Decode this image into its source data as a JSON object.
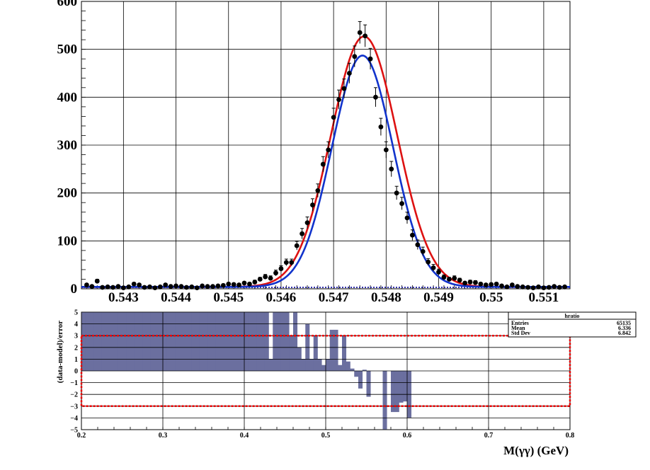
{
  "chart_data": [
    {
      "type": "scatter",
      "title": "",
      "xlabel": "",
      "ylabel": "",
      "xlim": [
        0.5422,
        0.5515
      ],
      "ylim": [
        0,
        600
      ],
      "grid": true,
      "x_ticks": [
        "0.543",
        "0.544",
        "0.545",
        "0.546",
        "0.547",
        "0.548",
        "0.549",
        "0.55",
        "0.551"
      ],
      "y_ticks": [
        "0",
        "100",
        "200",
        "300",
        "400",
        "500",
        "600"
      ],
      "peak_position": 0.5476,
      "series": [
        {
          "color": "#000000",
          "style": "points-with-errors",
          "x": [
            0.5423,
            0.5424,
            0.5425,
            0.5426,
            0.5427,
            0.5428,
            0.5429,
            0.543,
            0.5431,
            0.5432,
            0.5433,
            0.5434,
            0.5435,
            0.5436,
            0.5437,
            0.5438,
            0.5439,
            0.544,
            0.5441,
            0.5442,
            0.5443,
            0.5444,
            0.5445,
            0.5446,
            0.5447,
            0.5448,
            0.5449,
            0.545,
            0.5451,
            0.5452,
            0.5453,
            0.5454,
            0.5455,
            0.5456,
            0.5457,
            0.5458,
            0.5459,
            0.546,
            0.5461,
            0.5462,
            0.5463,
            0.5464,
            0.5465,
            0.5466,
            0.5467,
            0.5468,
            0.5469,
            0.547,
            0.5471,
            0.5472,
            0.5473,
            0.5474,
            0.5475,
            0.5476,
            0.5477,
            0.5478,
            0.5479,
            0.548,
            0.5481,
            0.5482,
            0.5483,
            0.5484,
            0.5485,
            0.5486,
            0.5487,
            0.5488,
            0.5489,
            0.549,
            0.5491,
            0.5492,
            0.5493,
            0.5494,
            0.5495,
            0.5496,
            0.5497,
            0.5498,
            0.5499,
            0.55,
            0.5501,
            0.5502,
            0.5503,
            0.5504,
            0.5505,
            0.5506,
            0.5507,
            0.5508,
            0.5509,
            0.551,
            0.5511,
            0.5512,
            0.5513,
            0.5514
          ],
          "y": [
            8,
            5,
            16,
            3,
            4,
            3,
            5,
            2,
            4,
            10,
            8,
            3,
            4,
            2,
            4,
            8,
            5,
            6,
            5,
            3,
            4,
            2,
            6,
            5,
            5,
            6,
            7,
            10,
            9,
            8,
            12,
            10,
            14,
            20,
            25,
            22,
            33,
            42,
            55,
            55,
            90,
            115,
            138,
            175,
            205,
            260,
            290,
            358,
            395,
            418,
            450,
            485,
            535,
            528,
            480,
            400,
            338,
            290,
            250,
            200,
            178,
            148,
            112,
            92,
            78,
            56,
            44,
            35,
            24,
            20,
            22,
            18,
            12,
            14,
            13,
            10,
            8,
            9,
            10,
            6,
            4,
            8,
            5,
            4,
            3,
            2,
            4,
            2,
            3,
            5,
            3,
            4
          ],
          "y_err": [
            3,
            2,
            4,
            2,
            2,
            2,
            2,
            1,
            2,
            3,
            3,
            2,
            2,
            1,
            2,
            3,
            2,
            2,
            2,
            2,
            2,
            1,
            2,
            2,
            2,
            2,
            3,
            3,
            3,
            3,
            3,
            3,
            4,
            4,
            5,
            5,
            6,
            6,
            7,
            7,
            9,
            11,
            12,
            13,
            14,
            16,
            17,
            19,
            20,
            20,
            21,
            22,
            23,
            23,
            22,
            20,
            18,
            17,
            16,
            14,
            13,
            12,
            11,
            10,
            9,
            7,
            7,
            6,
            5,
            4,
            5,
            4,
            3,
            4,
            4,
            3,
            3,
            3,
            3,
            2,
            2,
            3,
            2,
            2,
            2,
            1,
            2,
            1,
            2,
            2,
            2,
            2
          ]
        },
        {
          "color": "#dd1111",
          "style": "line",
          "mean": 0.54758,
          "sigma": 0.00063,
          "amplitude": 523
        },
        {
          "color": "#1133cc",
          "style": "line",
          "mean": 0.54755,
          "sigma": 0.00058,
          "amplitude": 483
        },
        {
          "color": "#3333aa",
          "style": "dotted-baseline",
          "value": 3
        }
      ]
    },
    {
      "type": "bar",
      "title": "",
      "xlabel": "M(γγ) (GeV)",
      "ylabel": "(data-model)/error",
      "xlim": [
        0.2,
        0.8
      ],
      "ylim": [
        -5,
        5
      ],
      "grid": true,
      "x_ticks": [
        "0.2",
        "0.3",
        "0.4",
        "0.5",
        "0.6",
        "0.7",
        "0.8"
      ],
      "y_ticks": [
        "−5",
        "−4",
        "−3",
        "−2",
        "−1",
        "0",
        "1",
        "2",
        "3",
        "4",
        "5"
      ],
      "bin_width": 0.005,
      "bins_start": 0.2,
      "fill_color": "#6b6f9f",
      "values": [
        5,
        5,
        5,
        5,
        5,
        5,
        5,
        5,
        5,
        5,
        5,
        5,
        5,
        5,
        5,
        5,
        5,
        5,
        5,
        5,
        5,
        5,
        5,
        5,
        5,
        5,
        5,
        5,
        5,
        5,
        5,
        5,
        5,
        5,
        5,
        5,
        5,
        5,
        5,
        5,
        5,
        5,
        5,
        5,
        5,
        5,
        1,
        5,
        5,
        5,
        5,
        3,
        5,
        2,
        1,
        4,
        1,
        3,
        1,
        0.5,
        1,
        3.5,
        3.5,
        0.5,
        3,
        0.8,
        0.2,
        -0.5,
        -1.5,
        0.1,
        -2.2,
        0,
        0,
        0,
        -5,
        0,
        -3.5,
        -3.5,
        -2.7,
        -2.6,
        -4
      ],
      "reference_lines": [
        3,
        -3
      ],
      "reference_color": "#ee0000",
      "stats_box": {
        "title": "hratio",
        "rows": [
          {
            "label": "Entries",
            "value": "65135"
          },
          {
            "label": "Mean",
            "value": "6.336"
          },
          {
            "label": "Std Dev",
            "value": "6.842"
          }
        ]
      }
    }
  ]
}
